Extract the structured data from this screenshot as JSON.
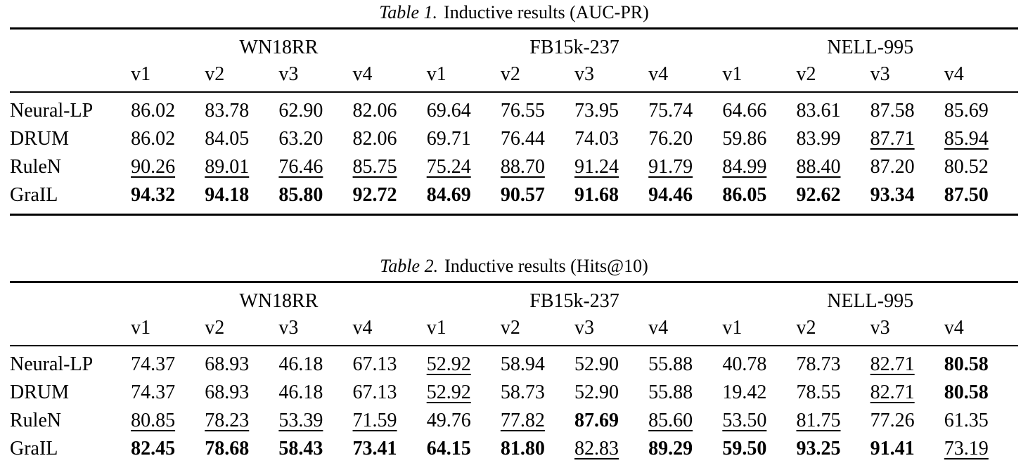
{
  "page": {
    "background": "#ffffff",
    "text_color": "#000000"
  },
  "tables": [
    {
      "caption_label": "Table 1.",
      "caption_text": "Inductive results (AUC-PR)",
      "group_headers": [
        "WN18RR",
        "FB15k-237",
        "NELL-995"
      ],
      "group_span": 4,
      "version_headers": [
        "v1",
        "v2",
        "v3",
        "v4",
        "v1",
        "v2",
        "v3",
        "v4",
        "v1",
        "v2",
        "v3",
        "v4"
      ],
      "style_legend": {
        "p": "plain",
        "u": "underline (second best)",
        "b": "bold (best)"
      },
      "rows": [
        {
          "label": "Neural-LP",
          "values": [
            "86.02",
            "83.78",
            "62.90",
            "82.06",
            "69.64",
            "76.55",
            "73.95",
            "75.74",
            "64.66",
            "83.61",
            "87.58",
            "85.69"
          ],
          "styles": [
            "p",
            "p",
            "p",
            "p",
            "p",
            "p",
            "p",
            "p",
            "p",
            "p",
            "p",
            "p"
          ]
        },
        {
          "label": "DRUM",
          "values": [
            "86.02",
            "84.05",
            "63.20",
            "82.06",
            "69.71",
            "76.44",
            "74.03",
            "76.20",
            "59.86",
            "83.99",
            "87.71",
            "85.94"
          ],
          "styles": [
            "p",
            "p",
            "p",
            "p",
            "p",
            "p",
            "p",
            "p",
            "p",
            "p",
            "u",
            "u"
          ]
        },
        {
          "label": "RuleN",
          "values": [
            "90.26",
            "89.01",
            "76.46",
            "85.75",
            "75.24",
            "88.70",
            "91.24",
            "91.79",
            "84.99",
            "88.40",
            "87.20",
            "80.52"
          ],
          "styles": [
            "u",
            "u",
            "u",
            "u",
            "u",
            "u",
            "u",
            "u",
            "u",
            "u",
            "p",
            "p"
          ]
        },
        {
          "label": "GraIL",
          "values": [
            "94.32",
            "94.18",
            "85.80",
            "92.72",
            "84.69",
            "90.57",
            "91.68",
            "94.46",
            "86.05",
            "92.62",
            "93.34",
            "87.50"
          ],
          "styles": [
            "b",
            "b",
            "b",
            "b",
            "b",
            "b",
            "b",
            "b",
            "b",
            "b",
            "b",
            "b"
          ]
        }
      ]
    },
    {
      "caption_label": "Table 2.",
      "caption_text": "Inductive results (Hits@10)",
      "group_headers": [
        "WN18RR",
        "FB15k-237",
        "NELL-995"
      ],
      "group_span": 4,
      "version_headers": [
        "v1",
        "v2",
        "v3",
        "v4",
        "v1",
        "v2",
        "v3",
        "v4",
        "v1",
        "v2",
        "v3",
        "v4"
      ],
      "style_legend": {
        "p": "plain",
        "u": "underline (second best)",
        "b": "bold (best)"
      },
      "rows": [
        {
          "label": "Neural-LP",
          "values": [
            "74.37",
            "68.93",
            "46.18",
            "67.13",
            "52.92",
            "58.94",
            "52.90",
            "55.88",
            "40.78",
            "78.73",
            "82.71",
            "80.58"
          ],
          "styles": [
            "p",
            "p",
            "p",
            "p",
            "u",
            "p",
            "p",
            "p",
            "p",
            "p",
            "u",
            "b"
          ]
        },
        {
          "label": "DRUM",
          "values": [
            "74.37",
            "68.93",
            "46.18",
            "67.13",
            "52.92",
            "58.73",
            "52.90",
            "55.88",
            "19.42",
            "78.55",
            "82.71",
            "80.58"
          ],
          "styles": [
            "p",
            "p",
            "p",
            "p",
            "u",
            "p",
            "p",
            "p",
            "p",
            "p",
            "u",
            "b"
          ]
        },
        {
          "label": "RuleN",
          "values": [
            "80.85",
            "78.23",
            "53.39",
            "71.59",
            "49.76",
            "77.82",
            "87.69",
            "85.60",
            "53.50",
            "81.75",
            "77.26",
            "61.35"
          ],
          "styles": [
            "u",
            "u",
            "u",
            "u",
            "p",
            "u",
            "b",
            "u",
            "u",
            "u",
            "p",
            "p"
          ]
        },
        {
          "label": "GraIL",
          "values": [
            "82.45",
            "78.68",
            "58.43",
            "73.41",
            "64.15",
            "81.80",
            "82.83",
            "89.29",
            "59.50",
            "93.25",
            "91.41",
            "73.19"
          ],
          "styles": [
            "b",
            "b",
            "b",
            "b",
            "b",
            "b",
            "u",
            "b",
            "b",
            "b",
            "b",
            "u"
          ]
        }
      ]
    }
  ]
}
